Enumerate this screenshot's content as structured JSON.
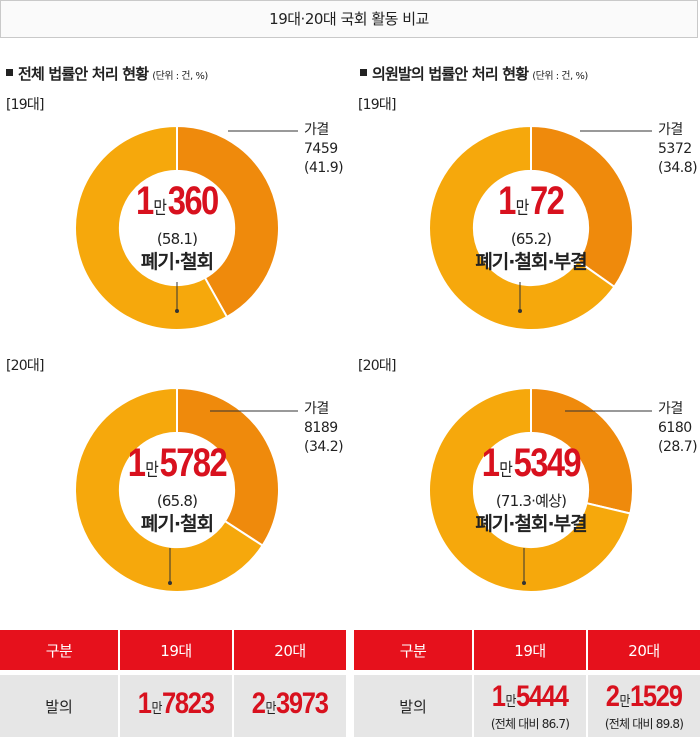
{
  "header": {
    "title": "19대·20대 국회 활동 비교"
  },
  "colors": {
    "passed": "#ef8a0c",
    "discarded": "#f6a80c",
    "accent_red": "#d8111e",
    "table_header": "#e6111c"
  },
  "left": {
    "title": "전체 법률안 처리 현황",
    "unit": "(단위 : 건, %)",
    "gen19_label": "[19대]",
    "gen20_label": "[20대]"
  },
  "right": {
    "title": "의원발의 법률안 처리 현황",
    "unit": "(단위 : 건, %)",
    "gen19_label": "[19대]",
    "gen20_label": "[20대]"
  },
  "chart_data": [
    {
      "type": "pie",
      "section": "전체 법률안 처리 현황",
      "generation": "[19대]",
      "slices": [
        {
          "label": "가결",
          "value": 7459,
          "percent": 41.9
        },
        {
          "label": "폐기·철회",
          "value": 10360,
          "percent": 58.1
        }
      ],
      "center": {
        "num_prefix": "1",
        "man": "만",
        "num_suffix": "360",
        "pct": "(58.1)",
        "caption": "폐기·철회"
      },
      "annotation": {
        "label": "가결",
        "value": "7459",
        "pct": "(41.9)"
      }
    },
    {
      "type": "pie",
      "section": "의원발의 법률안 처리 현황",
      "generation": "[19대]",
      "slices": [
        {
          "label": "가결",
          "value": 5372,
          "percent": 34.8
        },
        {
          "label": "폐기·철회·부결",
          "value": 10072,
          "percent": 65.2
        }
      ],
      "center": {
        "num_prefix": "1",
        "man": "만",
        "num_suffix": "72",
        "pct": "(65.2)",
        "caption": "폐기·철회·부결"
      },
      "annotation": {
        "label": "가결",
        "value": "5372",
        "pct": "(34.8)"
      }
    },
    {
      "type": "pie",
      "section": "전체 법률안 처리 현황",
      "generation": "[20대]",
      "slices": [
        {
          "label": "가결",
          "value": 8189,
          "percent": 34.2
        },
        {
          "label": "폐기·철회",
          "value": 15782,
          "percent": 65.8
        }
      ],
      "center": {
        "num_prefix": "1",
        "man": "만",
        "num_suffix": "5782",
        "pct": "(65.8)",
        "caption": "폐기·철회"
      },
      "annotation": {
        "label": "가결",
        "value": "8189",
        "pct": "(34.2)"
      }
    },
    {
      "type": "pie",
      "section": "의원발의 법률안 처리 현황",
      "generation": "[20대]",
      "slices": [
        {
          "label": "가결",
          "value": 6180,
          "percent": 28.7
        },
        {
          "label": "폐기·철회·부결",
          "value": 15349,
          "percent": 71.3
        }
      ],
      "center": {
        "num_prefix": "1",
        "man": "만",
        "num_suffix": "5349",
        "pct": "(71.3·예상)",
        "caption": "폐기·철회·부결"
      },
      "annotation": {
        "label": "가결",
        "value": "6180",
        "pct": "(28.7)"
      }
    },
    {
      "type": "table",
      "section": "전체",
      "columns": [
        "구분",
        "19대",
        "20대"
      ],
      "rows": [
        {
          "label": "발의",
          "c19": {
            "num_prefix": "1",
            "man": "만",
            "num_suffix": "7823",
            "value": 17823
          },
          "c20": {
            "num_prefix": "2",
            "man": "만",
            "num_suffix": "3973",
            "value": 23973
          }
        }
      ]
    },
    {
      "type": "table",
      "section": "의원발의",
      "columns": [
        "구분",
        "19대",
        "20대"
      ],
      "rows": [
        {
          "label": "발의",
          "c19": {
            "num_prefix": "1",
            "man": "만",
            "num_suffix": "5444",
            "value": 15444,
            "note": "(전체 대비 86.7)"
          },
          "c20": {
            "num_prefix": "2",
            "man": "만",
            "num_suffix": "1529",
            "value": 21529,
            "note": "(전체 대비 89.8)"
          }
        }
      ]
    }
  ]
}
